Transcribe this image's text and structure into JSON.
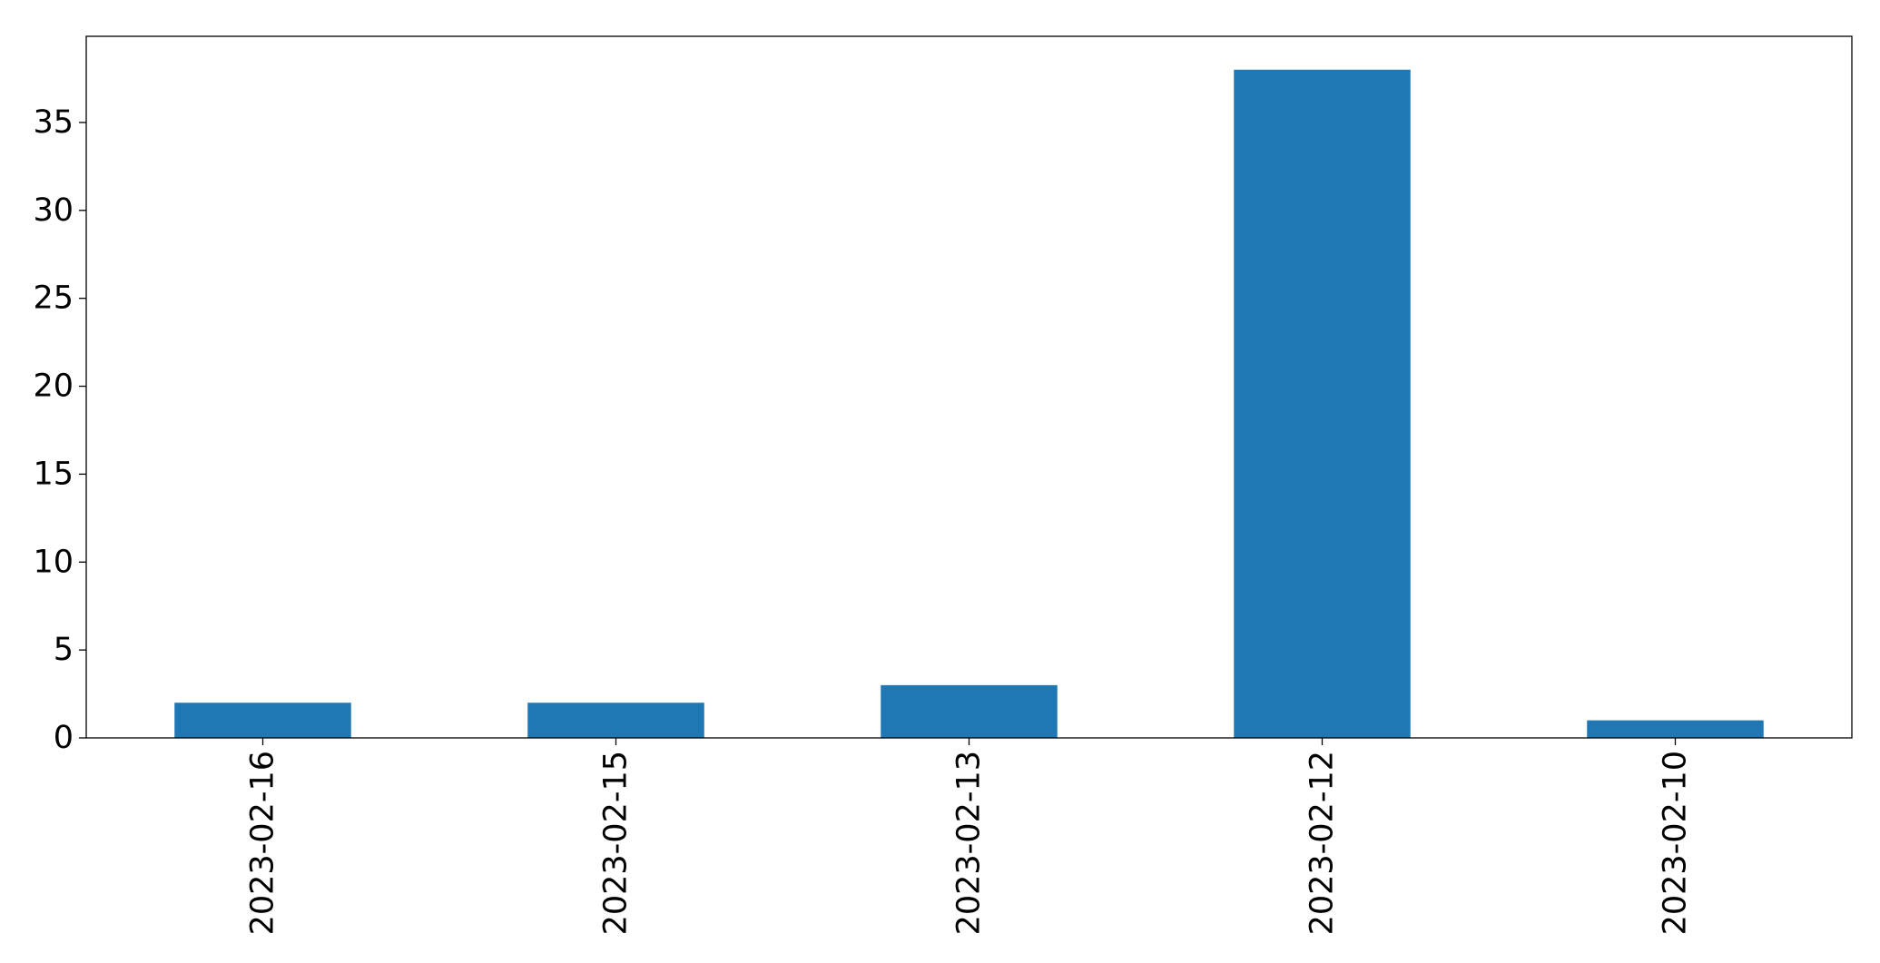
{
  "chart_data": {
    "type": "bar",
    "categories": [
      "2023-02-16",
      "2023-02-15",
      "2023-02-13",
      "2023-02-12",
      "2023-02-10"
    ],
    "values": [
      2,
      2,
      3,
      38,
      1
    ],
    "title": "",
    "xlabel": "",
    "ylabel": "",
    "ylim": [
      0,
      39.9
    ],
    "yticks": [
      0,
      5,
      10,
      15,
      20,
      25,
      30,
      35
    ],
    "grid": false,
    "legend": "none",
    "bar_color": "#1f77b4",
    "x_tick_rotation": "vertical"
  }
}
